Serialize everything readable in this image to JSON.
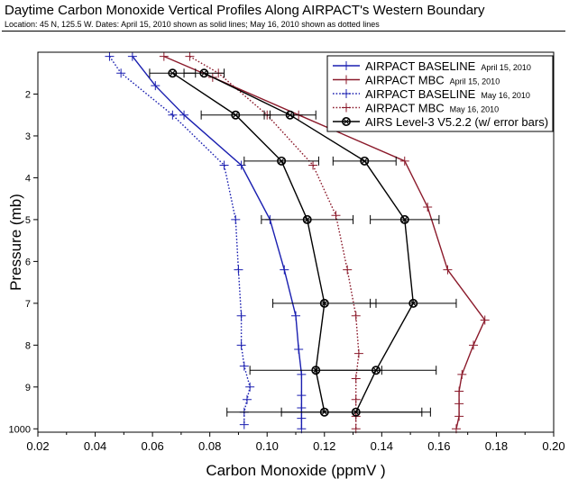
{
  "chart_data": {
    "type": "line",
    "title": "Daytime Carbon Monoxide Vertical Profiles Along AIRPACT's Western Boundary",
    "subtitle": "Location: 45 N, 125.5 W.  Dates: April 15, 2010 shown as solid lines; May 16, 2010 shown as dotted lines",
    "xlabel": "Carbon Monoxide (ppmV )",
    "ylabel": "Pressure (mb)",
    "xlim": [
      0.02,
      0.2
    ],
    "x_ticks": [
      "0.02",
      "0.04",
      "0.06",
      "0.08",
      "0.10",
      "0.12",
      "0.14",
      "0.16",
      "0.18",
      "0.20"
    ],
    "y_tick_labels": [
      "1000",
      "9",
      "8",
      "7",
      "6",
      "5",
      "4",
      "3",
      "2"
    ],
    "y_scale": "log (pressure, decreasing upward)",
    "grid": false,
    "legend_position": "top-right",
    "colors": {
      "baseline": "#1a1fb0",
      "mbc": "#8b1a2b",
      "airs": "#000000"
    },
    "series": [
      {
        "name": "AIRPACT BASELINE",
        "date": "April 15, 2010",
        "style": "solid",
        "color": "#1a1fb0",
        "points": [
          [
            0.053,
            1.1
          ],
          [
            0.061,
            1.8
          ],
          [
            0.071,
            2.5
          ],
          [
            0.091,
            3.7
          ],
          [
            0.101,
            5.0
          ],
          [
            0.106,
            6.2
          ],
          [
            0.11,
            7.3
          ],
          [
            0.111,
            8.1
          ],
          [
            0.112,
            8.7
          ],
          [
            0.112,
            9.2
          ],
          [
            0.112,
            9.5
          ],
          [
            0.112,
            9.75
          ],
          [
            0.112,
            10.0
          ]
        ]
      },
      {
        "name": "AIRPACT MBC",
        "date": "April 15, 2010",
        "style": "solid",
        "color": "#8b1a2b",
        "points": [
          [
            0.064,
            1.1
          ],
          [
            0.081,
            1.6
          ],
          [
            0.111,
            2.5
          ],
          [
            0.148,
            3.6
          ],
          [
            0.156,
            4.7
          ],
          [
            0.163,
            6.2
          ],
          [
            0.176,
            7.4
          ],
          [
            0.172,
            8.0
          ],
          [
            0.168,
            8.7
          ],
          [
            0.167,
            9.1
          ],
          [
            0.167,
            9.4
          ],
          [
            0.167,
            9.7
          ],
          [
            0.166,
            10.0
          ]
        ]
      },
      {
        "name": "AIRPACT BASELINE",
        "date": "May 16, 2010",
        "style": "dotted",
        "color": "#1a1fb0",
        "points": [
          [
            0.045,
            1.1
          ],
          [
            0.049,
            1.5
          ],
          [
            0.067,
            2.5
          ],
          [
            0.085,
            3.7
          ],
          [
            0.089,
            5.0
          ],
          [
            0.09,
            6.2
          ],
          [
            0.091,
            7.3
          ],
          [
            0.091,
            8.0
          ],
          [
            0.092,
            8.5
          ],
          [
            0.094,
            9.0
          ],
          [
            0.093,
            9.3
          ],
          [
            0.092,
            9.6
          ],
          [
            0.092,
            9.9
          ]
        ]
      },
      {
        "name": "AIRPACT MBC",
        "date": "May 16, 2010",
        "style": "dotted",
        "color": "#8b1a2b",
        "points": [
          [
            0.073,
            1.1
          ],
          [
            0.083,
            1.5
          ],
          [
            0.1,
            2.5
          ],
          [
            0.116,
            3.7
          ],
          [
            0.124,
            4.9
          ],
          [
            0.128,
            6.2
          ],
          [
            0.131,
            7.3
          ],
          [
            0.132,
            8.2
          ],
          [
            0.131,
            8.8
          ],
          [
            0.131,
            9.3
          ],
          [
            0.131,
            9.7
          ],
          [
            0.131,
            10.0
          ]
        ]
      },
      {
        "name": "AIRS Level-3 V5.2.2 (w/ error bars)",
        "date": "April 15, 2010",
        "style": "solid",
        "color": "#000000",
        "points": [
          [
            0.078,
            1.5
          ],
          [
            0.108,
            2.5
          ],
          [
            0.134,
            3.6
          ],
          [
            0.148,
            5.0
          ],
          [
            0.151,
            7.0
          ],
          [
            0.138,
            8.6
          ],
          [
            0.131,
            9.6
          ]
        ],
        "error": [
          0.007,
          0.009,
          0.011,
          0.012,
          0.015,
          0.021,
          0.026
        ]
      },
      {
        "name": "AIRS Level-3 V5.2.2 (w/ error bars)",
        "date": "May 16, 2010",
        "style": "solid",
        "color": "#000000",
        "points": [
          [
            0.067,
            1.5
          ],
          [
            0.089,
            2.5
          ],
          [
            0.105,
            3.6
          ],
          [
            0.114,
            5.0
          ],
          [
            0.12,
            7.0
          ],
          [
            0.117,
            8.6
          ],
          [
            0.12,
            9.6
          ]
        ],
        "error": [
          0.008,
          0.012,
          0.013,
          0.016,
          0.018,
          0.023,
          0.034
        ]
      }
    ]
  },
  "legend": {
    "entries": [
      {
        "label": "AIRPACT BASELINE",
        "date": "April 15, 2010",
        "color": "#1a1fb0",
        "style": "solid",
        "marker": "plus"
      },
      {
        "label": "AIRPACT MBC",
        "date": "April 15, 2010",
        "color": "#8b1a2b",
        "style": "solid",
        "marker": "plus"
      },
      {
        "label": "AIRPACT BASELINE",
        "date": "May 16, 2010",
        "color": "#1a1fb0",
        "style": "dotted",
        "marker": "plus"
      },
      {
        "label": "AIRPACT MBC",
        "date": "May 16, 2010",
        "color": "#8b1a2b",
        "style": "dotted",
        "marker": "plus"
      },
      {
        "label": "AIRS Level-3 V5.2.2 (w/ error bars)",
        "date": "",
        "color": "#000000",
        "style": "solid",
        "marker": "circle-x"
      }
    ]
  }
}
